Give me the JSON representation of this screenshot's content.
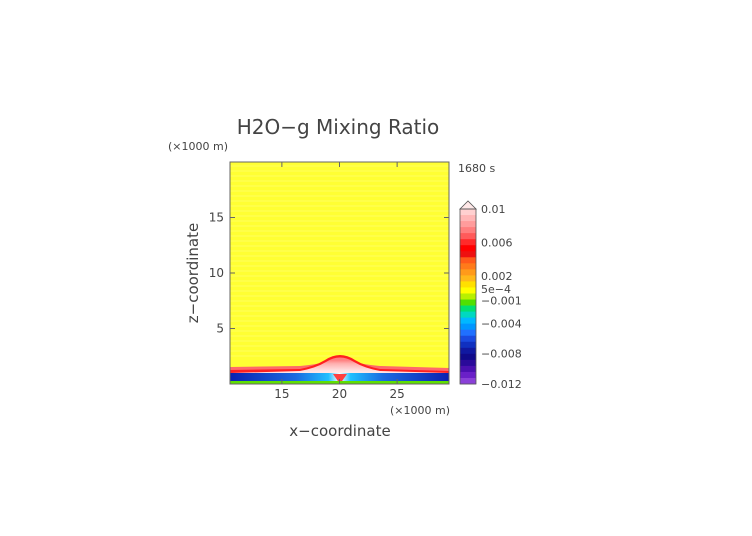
{
  "chart_data": {
    "type": "heatmap",
    "title": "H2O−g Mixing Ratio",
    "time_label": "1680 s",
    "xlabel": "x−coordinate",
    "ylabel": "z−coordinate",
    "x_unit": "(×1000 m)",
    "y_unit": "(×1000 m)",
    "xlim": [
      10.5,
      29.5
    ],
    "ylim": [
      0,
      20
    ],
    "x_ticks": [
      15,
      20,
      25
    ],
    "x_tick_labels": [
      "15",
      "20",
      "25"
    ],
    "y_ticks": [
      5,
      10,
      15
    ],
    "y_tick_labels": [
      "5",
      "10",
      "15"
    ],
    "field": {
      "background_value": 0.0,
      "cloud_center_x": 20,
      "cloud_top_z": 2.6,
      "boundary_layer_top_z": 1.2,
      "surface_band_top_z": 0.9
    },
    "colorbar": {
      "labels": [
        "0.01",
        "0.006",
        "0.002",
        "5e−4",
        "−0.001",
        "−0.004",
        "−0.008",
        "−0.012"
      ],
      "label_values": [
        0.01,
        0.006,
        0.002,
        0.0005,
        -0.001,
        -0.004,
        -0.008,
        -0.012
      ],
      "extend": "max",
      "colors_top_to_bottom": [
        "#ffd0d0",
        "#ffb6b6",
        "#ff9c9c",
        "#ff7e7e",
        "#ff5a5a",
        "#ff2a2a",
        "#ff0000",
        "#ee1010",
        "#ff5a1a",
        "#ff7a1a",
        "#ff9a1a",
        "#ffb81a",
        "#ffe000",
        "#ffff00",
        "#b8f000",
        "#50e000",
        "#00e070",
        "#00d8c0",
        "#00b8ff",
        "#0096ff",
        "#2070ff",
        "#1a4ae0",
        "#1030c0",
        "#1018a0",
        "#100a8a",
        "#2a0a9a",
        "#4a10b0",
        "#6a20c8",
        "#8a40d8"
      ]
    }
  }
}
